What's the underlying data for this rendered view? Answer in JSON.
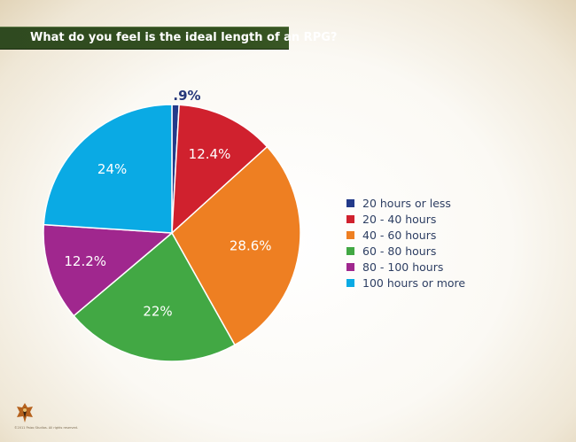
{
  "title": "What do you feel is the ideal length of an RPG?",
  "copyright": "©2011 Paizo Studios. All rights reserved.",
  "logo_icon": "game-logo-icon",
  "chart_data": {
    "type": "pie",
    "title": "What do you feel is the ideal length of an RPG?",
    "legend_position": "right",
    "slices": [
      {
        "label": "20 hours or less",
        "value": 0.9,
        "value_label": ".9%",
        "color": "#233a8a"
      },
      {
        "label": "20 - 40 hours",
        "value": 12.4,
        "value_label": "12.4%",
        "color": "#d0212e"
      },
      {
        "label": "40 - 60 hours",
        "value": 28.6,
        "value_label": "28.6%",
        "color": "#ee7f22"
      },
      {
        "label": "60 - 80 hours",
        "value": 22,
        "value_label": "22%",
        "color": "#42a844"
      },
      {
        "label": "80 - 100 hours",
        "value": 12.2,
        "value_label": "12.2%",
        "color": "#a0278e"
      },
      {
        "label": "100 hours or more",
        "value": 24,
        "value_label": "24%",
        "color": "#0aaae4"
      }
    ]
  }
}
